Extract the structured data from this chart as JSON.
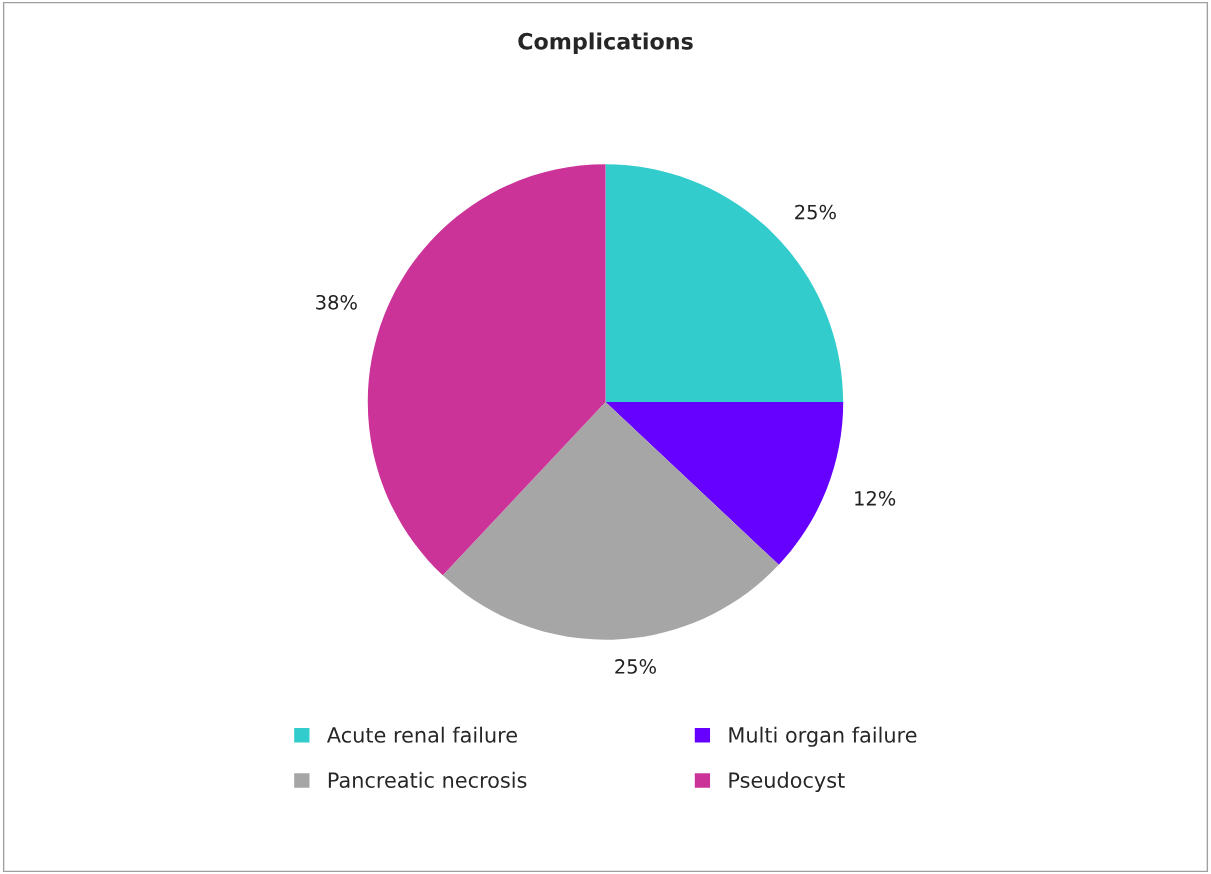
{
  "chart_data": {
    "type": "pie",
    "title": "Complications",
    "categories": [
      "Acute renal failure",
      "Multi organ failure",
      "Pancreatic necrosis",
      "Pseudocyst"
    ],
    "values": [
      25,
      12,
      25,
      38
    ],
    "value_labels": [
      "25%",
      "12%",
      "25%",
      "38%"
    ],
    "colors": [
      "#33cccc",
      "#6600ff",
      "#a6a6a6",
      "#cc3399"
    ],
    "legend": "bottom"
  }
}
